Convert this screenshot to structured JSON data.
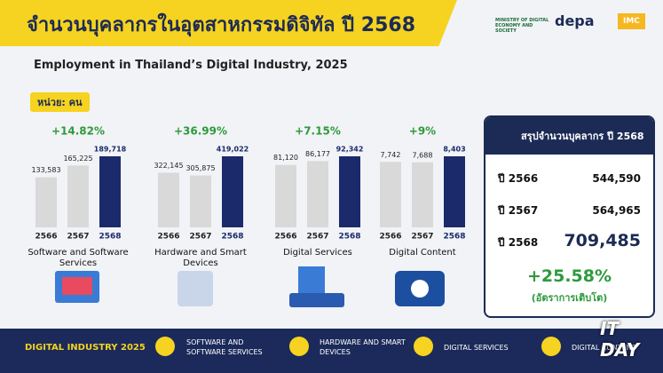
{
  "header": {
    "title": "จำนวนบุคลากรในอุตสาหกรรมดิจิทัล ปี 2568",
    "subtitle": "Employment in Thailand’s Digital Industry, 2025",
    "unit": "หน่วย: คน",
    "logos": [
      "MINISTRY OF DIGITAL ECONOMY AND SOCIETY",
      "depa",
      "IMC"
    ]
  },
  "chart_data": [
    {
      "type": "bar",
      "title": "Software and Software Services",
      "annotation": "+14.82%",
      "categories": [
        "2566",
        "2567",
        "2568"
      ],
      "values": [
        133583,
        165225,
        189718
      ],
      "value_labels": [
        "133,583",
        "165,225",
        "189,718"
      ],
      "colors": [
        "#d9d9d9",
        "#d9d9d9",
        "#1b2a6b"
      ]
    },
    {
      "type": "bar",
      "title": "Hardware and Smart Devices",
      "annotation": "+36.99%",
      "categories": [
        "2566",
        "2567",
        "2568"
      ],
      "values": [
        322145,
        305875,
        419022
      ],
      "value_labels": [
        "322,145",
        "305,875",
        "419,022"
      ],
      "colors": [
        "#d9d9d9",
        "#d9d9d9",
        "#1b2a6b"
      ]
    },
    {
      "type": "bar",
      "title": "Digital Services",
      "annotation": "+7.15%",
      "categories": [
        "2566",
        "2567",
        "2568"
      ],
      "values": [
        81120,
        86177,
        92342
      ],
      "value_labels": [
        "81,120",
        "86,177",
        "92,342"
      ],
      "colors": [
        "#d9d9d9",
        "#d9d9d9",
        "#1b2a6b"
      ]
    },
    {
      "type": "bar",
      "title": "Digital Content",
      "annotation": "+9%",
      "categories": [
        "2566",
        "2567",
        "2568"
      ],
      "values": [
        7742,
        7688,
        8403
      ],
      "value_labels": [
        "7,742",
        "7,688",
        "8,403"
      ],
      "colors": [
        "#d9d9d9",
        "#d9d9d9",
        "#1b2a6b"
      ]
    }
  ],
  "summary": {
    "title": "สรุปจำนวนบุคลากร ปี 2568",
    "rows": [
      [
        "ปี 2566",
        "544,590"
      ],
      [
        "ปี 2567",
        "564,965"
      ],
      [
        "ปี 2568",
        "709,485"
      ]
    ],
    "growth": "+25.58%",
    "growth_label": "(อัตราการเติบโต)"
  },
  "footer": {
    "title": "DIGITAL INDUSTRY 2025",
    "items": [
      "SOFTWARE AND SOFTWARE SERVICES",
      "HARDWARE AND SMART DEVICES",
      "DIGITAL SERVICES",
      "DIGITAL CONTENT"
    ]
  },
  "watermark": "IT DAY"
}
